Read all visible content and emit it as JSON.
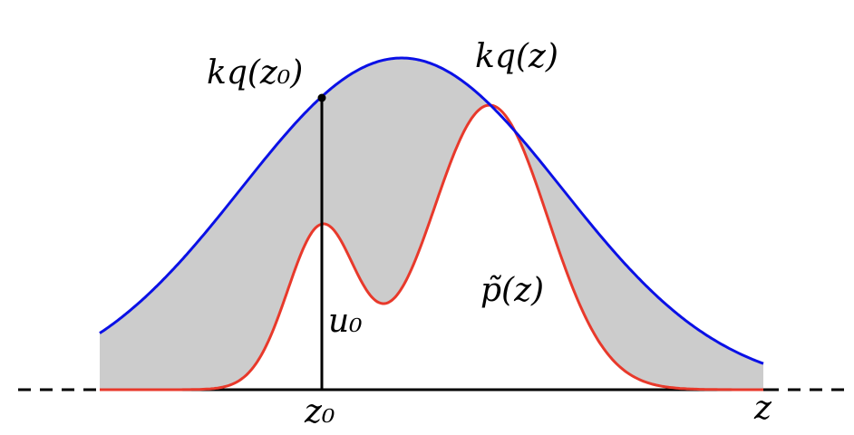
{
  "labels": {
    "kq_z0": "kq(z₀)",
    "kq_z": "kq(z)",
    "p_tilde": "p̃(z)",
    "u0": "u₀",
    "z0": "z₀",
    "z": "z"
  }
}
